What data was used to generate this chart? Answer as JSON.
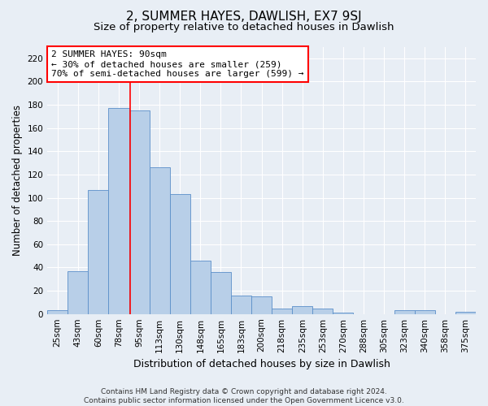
{
  "title": "2, SUMMER HAYES, DAWLISH, EX7 9SJ",
  "subtitle": "Size of property relative to detached houses in Dawlish",
  "xlabel": "Distribution of detached houses by size in Dawlish",
  "ylabel": "Number of detached properties",
  "footer_line1": "Contains HM Land Registry data © Crown copyright and database right 2024.",
  "footer_line2": "Contains public sector information licensed under the Open Government Licence v3.0.",
  "bar_labels": [
    "25sqm",
    "43sqm",
    "60sqm",
    "78sqm",
    "95sqm",
    "113sqm",
    "130sqm",
    "148sqm",
    "165sqm",
    "183sqm",
    "200sqm",
    "218sqm",
    "235sqm",
    "253sqm",
    "270sqm",
    "288sqm",
    "305sqm",
    "323sqm",
    "340sqm",
    "358sqm",
    "375sqm"
  ],
  "bar_values": [
    3,
    37,
    107,
    177,
    175,
    126,
    103,
    46,
    36,
    16,
    15,
    5,
    7,
    5,
    1,
    0,
    0,
    3,
    3,
    0,
    2
  ],
  "bar_color": "#b8cfe8",
  "bar_edgecolor": "#5b8fc9",
  "bg_color": "#e8eef5",
  "plot_bg_color": "#e8eef5",
  "grid_color": "#ffffff",
  "annotation_line1": "2 SUMMER HAYES: 90sqm",
  "annotation_line2": "← 30% of detached houses are smaller (259)",
  "annotation_line3": "70% of semi-detached houses are larger (599) →",
  "redline_x": 3.55,
  "ylim": [
    0,
    230
  ],
  "yticks": [
    0,
    20,
    40,
    60,
    80,
    100,
    120,
    140,
    160,
    180,
    200,
    220
  ],
  "title_fontsize": 11,
  "subtitle_fontsize": 9.5,
  "xlabel_fontsize": 9,
  "ylabel_fontsize": 8.5,
  "tick_fontsize": 7.5,
  "annotation_fontsize": 8,
  "footer_fontsize": 6.5
}
